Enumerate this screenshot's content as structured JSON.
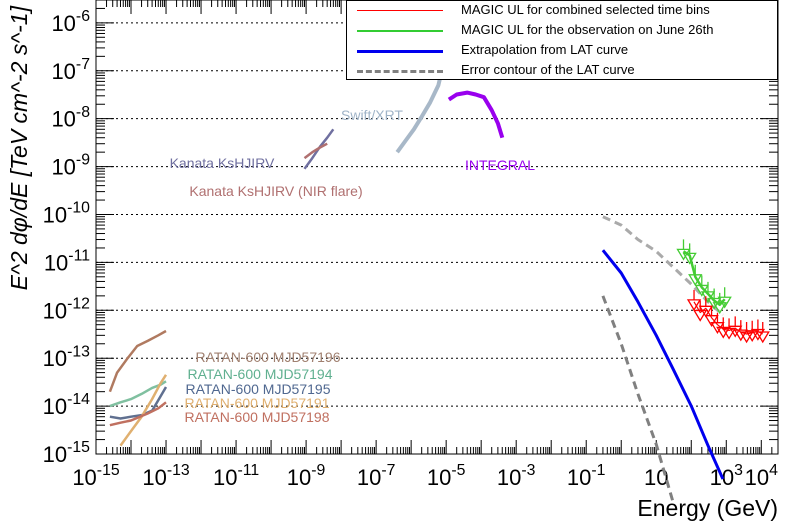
{
  "chart_data": {
    "type": "line",
    "xlabel": "Energy (GeV)",
    "ylabel": "E^2 dφ/dE  [TeV cm^-2 s^-1]",
    "xscale": "log",
    "yscale": "log",
    "xlim": [
      1e-15,
      30000.0
    ],
    "ylim": [
      1e-15,
      3e-06
    ],
    "x_ticks": [
      "10^-15",
      "10^-13",
      "10^-11",
      "10^-9",
      "10^-7",
      "10^-5",
      "10^-3",
      "10^-1",
      "10",
      "10^3",
      "10^4"
    ],
    "y_ticks": [
      "10^-15",
      "10^-14",
      "10^-13",
      "10^-12",
      "10^-11",
      "10^-10",
      "10^-9",
      "10^-8",
      "10^-7",
      "10^-6"
    ],
    "grid": "horizontal dotted at each decade",
    "legend_position": "top-right",
    "legend": [
      {
        "label": "MAGIC UL for combined selected time bins",
        "color": "#ff0000",
        "style": "solid-thin"
      },
      {
        "label": "MAGIC UL for the observation on June 26th",
        "color": "#33cc33",
        "style": "solid"
      },
      {
        "label": "Extrapolation from LAT curve",
        "color": "#0000ee",
        "style": "solid-thick"
      },
      {
        "label": "Error contour of the LAT curve",
        "color": "#808080",
        "style": "dashed"
      }
    ],
    "annotations": [
      {
        "text": "Swift/XRT",
        "color": "#a0b4c8"
      },
      {
        "text": "INTEGRAL",
        "color": "#9900ee"
      },
      {
        "text": "Kanata KsHJIRV",
        "color": "#7070a0"
      },
      {
        "text": "Kanata KsHJIRV (NIR flare)",
        "color": "#b07070"
      },
      {
        "text": "RATAN-600 MJD57196",
        "color": "#a08070"
      },
      {
        "text": "RATAN-600 MJD57194",
        "color": "#60b090"
      },
      {
        "text": "RATAN-600 MJD57195",
        "color": "#506890"
      },
      {
        "text": "RATAN-600 MJD57191",
        "color": "#e0b070"
      },
      {
        "text": "RATAN-600 MJD57198",
        "color": "#c07060"
      }
    ],
    "series": [
      {
        "name": "RATAN-600 MJD57196",
        "color": "#b07a60",
        "x": [
          2.5e-15,
          4e-15,
          8e-15,
          1.5e-14,
          3e-14,
          6e-14,
          1e-13
        ],
        "y": [
          2e-14,
          5e-14,
          1e-13,
          1.8e-13,
          2.3e-13,
          3e-13,
          3.7e-13
        ]
      },
      {
        "name": "RATAN-600 MJD57194",
        "color": "#80c0a0",
        "x": [
          2.5e-15,
          5e-15,
          1e-14,
          2e-14,
          4e-14,
          7e-14,
          1e-13
        ],
        "y": [
          1e-14,
          1.2e-14,
          1.4e-14,
          1.8e-14,
          2.4e-14,
          2.8e-14,
          3.3e-14
        ]
      },
      {
        "name": "RATAN-600 MJD57195",
        "color": "#607090",
        "x": [
          2.5e-15,
          5e-15,
          1e-14,
          2e-14,
          4e-14,
          7e-14,
          1e-13
        ],
        "y": [
          6e-15,
          5.5e-15,
          6e-15,
          6.5e-15,
          8e-15,
          1.6e-14,
          2.5e-14
        ]
      },
      {
        "name": "RATAN-600 MJD57191",
        "color": "#e0b070",
        "x": [
          5e-15,
          1e-14,
          2e-14,
          4e-14,
          7e-14,
          1e-13
        ],
        "y": [
          1.5e-15,
          3e-15,
          6e-15,
          1.4e-14,
          3e-14,
          4.5e-14
        ]
      },
      {
        "name": "RATAN-600 MJD57198",
        "color": "#c07060",
        "x": [
          2.5e-15,
          5e-15,
          1e-14,
          3e-14,
          6e-14,
          1e-13
        ],
        "y": [
          4e-15,
          4.5e-15,
          5e-15,
          7e-15,
          9e-15,
          1.2e-14
        ]
      },
      {
        "name": "Kanata KsHJIRV",
        "color": "#7070a0",
        "x": [
          9e-10,
          1.5e-09,
          2.5e-09,
          4e-09,
          6e-09
        ],
        "y": [
          9e-10,
          1.5e-09,
          2.6e-09,
          4e-09,
          6e-09
        ]
      },
      {
        "name": "Kanata KsHJIRV (NIR flare)",
        "color": "#b07070",
        "x": [
          9e-10,
          1.5e-09,
          2.5e-09,
          4e-09
        ],
        "y": [
          1.5e-09,
          2e-09,
          2.5e-09,
          3e-09
        ]
      },
      {
        "name": "Swift/XRT",
        "color": "#a8b8c8",
        "x": [
          4e-07,
          7e-07,
          1.2e-06,
          2e-06,
          3.5e-06,
          6e-06,
          9e-06
        ],
        "y": [
          2e-09,
          3.5e-09,
          6e-09,
          1.1e-08,
          2.2e-08,
          5e-08,
          1.8e-07
        ]
      },
      {
        "name": "INTEGRAL",
        "color": "#9900ee",
        "x": [
          1.2e-05,
          2e-05,
          4e-05,
          7e-05,
          0.00012,
          0.0002,
          0.0003,
          0.0004
        ],
        "y": [
          2.5e-08,
          3.2e-08,
          3.5e-08,
          3.2e-08,
          2.8e-08,
          1.5e-08,
          8e-09,
          4e-09
        ]
      },
      {
        "name": "Error contour of the LAT curve (upper)",
        "color": "#aaaaaa",
        "x": [
          0.3,
          1,
          3,
          10,
          30,
          100,
          300,
          800
        ],
        "y": [
          9e-11,
          6e-11,
          3e-11,
          1.7e-11,
          8e-12,
          3.5e-12,
          1.5e-12,
          8e-13
        ]
      },
      {
        "name": "Error contour of the LAT curve (lower)",
        "color": "#808080",
        "x": [
          0.3,
          1,
          3,
          10,
          30
        ],
        "y": [
          2e-12,
          2e-13,
          1.8e-14,
          1.6e-15,
          1e-16
        ]
      },
      {
        "name": "Extrapolation from LAT curve",
        "color": "#0000ee",
        "x": [
          0.3,
          1,
          3,
          10,
          30,
          100,
          300,
          800
        ],
        "y": [
          1.8e-11,
          6e-12,
          1.5e-12,
          3e-13,
          6e-14,
          1e-14,
          1.5e-15,
          3e-16
        ]
      },
      {
        "name": "MAGIC UL for the observation on June 26th",
        "color": "#44cc33",
        "x": [
          60,
          90,
          130,
          200,
          300,
          450,
          650,
          900
        ],
        "y": [
          1.7e-11,
          1.4e-11,
          5e-12,
          3e-12,
          2.2e-12,
          1.6e-12,
          1.3e-12,
          1.7e-12
        ]
      },
      {
        "name": "MAGIC UL for combined selected time bins",
        "color": "#ff0000",
        "x": [
          120,
          180,
          260,
          380,
          560,
          820,
          1200,
          1800,
          2600,
          3800,
          5500,
          8000,
          11000
        ],
        "y": [
          1.5e-12,
          9e-13,
          1.1e-12,
          7e-13,
          5e-13,
          4e-13,
          3.8e-13,
          4.2e-13,
          3.5e-13,
          3.2e-13,
          3.4e-13,
          3.6e-13,
          3.2e-13
        ]
      }
    ]
  }
}
